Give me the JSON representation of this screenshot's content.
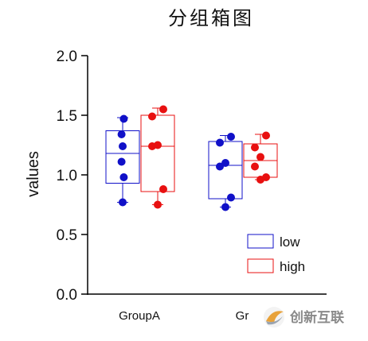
{
  "chart_data": {
    "type": "box",
    "title": "分组箱图",
    "ylabel": "values",
    "ylim": [
      0.0,
      2.0
    ],
    "yticks": [
      "0.0",
      "0.5",
      "1.0",
      "1.5",
      "2.0"
    ],
    "categories": [
      "GroupA",
      "Gr"
    ],
    "series": [
      {
        "name": "low",
        "color": "#1010c8",
        "boxes": [
          {
            "min": 0.77,
            "q1": 0.93,
            "median": 1.18,
            "q3": 1.37,
            "max": 1.48,
            "points": [
              0.77,
              0.98,
              1.11,
              1.24,
              1.34,
              1.47
            ]
          },
          {
            "min": 0.73,
            "q1": 0.8,
            "median": 1.08,
            "q3": 1.28,
            "max": 1.33,
            "points": [
              0.73,
              0.81,
              1.07,
              1.1,
              1.27,
              1.32
            ]
          }
        ]
      },
      {
        "name": "high",
        "color": "#e81010",
        "boxes": [
          {
            "min": 0.75,
            "q1": 0.86,
            "median": 1.24,
            "q3": 1.5,
            "max": 1.56,
            "points": [
              0.75,
              0.88,
              1.24,
              1.25,
              1.49,
              1.55
            ]
          },
          {
            "min": 0.96,
            "q1": 0.98,
            "median": 1.12,
            "q3": 1.26,
            "max": 1.34,
            "points": [
              0.96,
              0.98,
              1.07,
              1.15,
              1.23,
              1.33
            ]
          }
        ]
      }
    ],
    "legend_position": "bottom-right",
    "grid": false
  },
  "watermark": {
    "text": "创新互联",
    "icon": "logo-swirl-icon"
  }
}
